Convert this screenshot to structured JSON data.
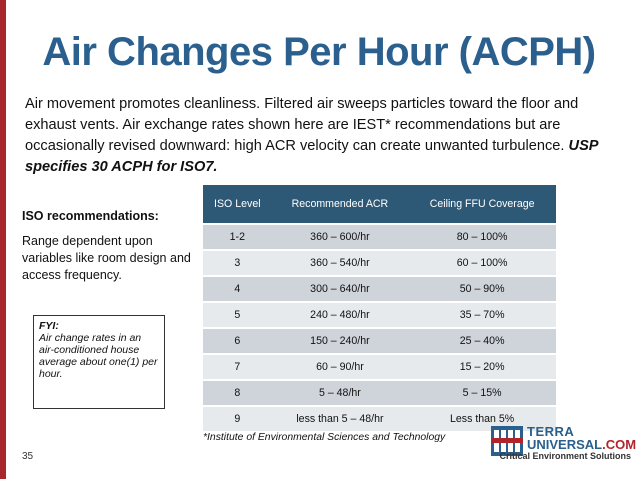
{
  "slide": {
    "title": "Air Changes Per Hour (ACPH)",
    "intro_text": "Air movement promotes cleanliness. Filtered air sweeps particles toward the floor and exhaust vents. Air exchange rates shown here are IEST* recommendations but are occasionally revised downward: high ACR velocity can create unwanted turbulence.",
    "intro_emphasis": "USP specifies 30 ACPH for ISO7.",
    "page_number": "35"
  },
  "sidebar": {
    "heading": "ISO recommendations:",
    "body": "Range dependent upon variables like room design and access frequency."
  },
  "fyi": {
    "label": "FYI:",
    "text": "Air change rates in an air-conditioned house average about one(1) per hour."
  },
  "table": {
    "headers": [
      "ISO Level",
      "Recommended ACR",
      "Ceiling FFU Coverage"
    ],
    "rows": [
      [
        "1-2",
        "360 – 600/hr",
        "80 – 100%"
      ],
      [
        "3",
        "360 – 540/hr",
        "60 – 100%"
      ],
      [
        "4",
        "300 – 640/hr",
        "50 – 90%"
      ],
      [
        "5",
        "240 – 480/hr",
        "35 – 70%"
      ],
      [
        "6",
        "150 – 240/hr",
        "25 – 40%"
      ],
      [
        "7",
        "60 – 90/hr",
        "15 – 20%"
      ],
      [
        "8",
        "5 – 48/hr",
        "5 – 15%"
      ],
      [
        "9",
        "less than 5 – 48/hr",
        "Less than 5%"
      ]
    ],
    "header_color": "#2e5976",
    "row_color_a": "#cfd4da",
    "row_color_b": "#e7eaed"
  },
  "footnote": "*Institute of Environmental Sciences and Technology",
  "logo": {
    "name_line1": "TERRA",
    "name_line2": "UNIVERSAL",
    "name_suffix": ".COM",
    "tagline": "Critical Environment Solutions",
    "icon": "terra-universal-logo-icon"
  },
  "colors": {
    "title": "#2a5f8e",
    "accent_bar": "#a8272c"
  }
}
